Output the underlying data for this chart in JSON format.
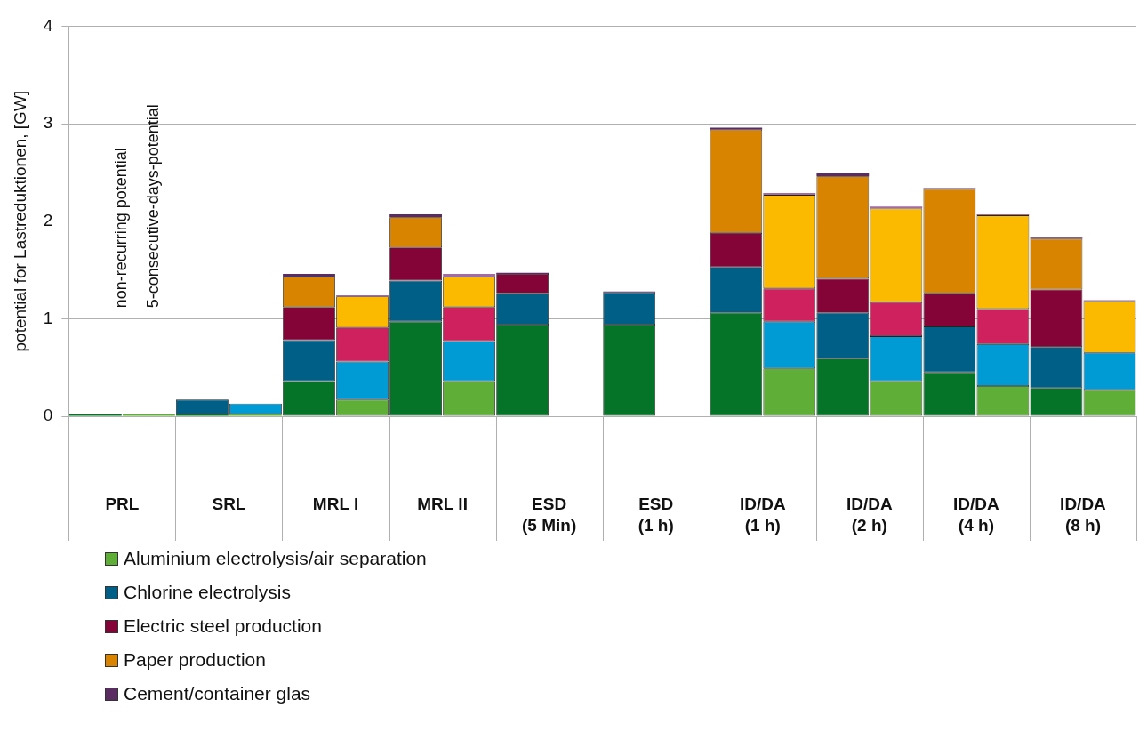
{
  "chart_data": {
    "type": "bar",
    "stacked": true,
    "ylabel": "potential for Lastreduktionen, [GW]",
    "annotations": [
      "non-recurring potential",
      "5-consecutive-days-potential"
    ],
    "categories": [
      "PRL",
      null,
      "SRL",
      null,
      "MRL I",
      null,
      "MRL II",
      null,
      "ESD (5 Min)",
      null,
      "ESD (1 h)",
      null,
      "ID/DA (1 h)",
      null,
      "ID/DA (2 h)",
      null,
      "ID/DA (4 h)",
      null,
      "ID/DA (8 h)",
      null
    ],
    "ylim": [
      0,
      4
    ],
    "yticks": [
      0,
      1,
      2,
      3,
      4
    ],
    "grid": "y",
    "legend": "bottom left",
    "series": [
      {
        "name": "Aluminium electrolysis/air separation",
        "color": "#5fae37",
        "colors": [
          "#057429",
          "#5fae37",
          "#057429",
          "#5fae37",
          "#057429",
          "#5fae37",
          "#057429",
          "#5fae37",
          "#057429",
          "#5fae37",
          "#057429",
          "#5fae37",
          "#057429",
          "#5fae37",
          "#057429",
          "#5fae37",
          "#057429",
          "#5fae37",
          "#057429",
          "#5fae37"
        ],
        "values": [
          0.02,
          0.02,
          0.02,
          0.02,
          0.36,
          0.17,
          0.97,
          0.36,
          0.94,
          null,
          0.94,
          null,
          1.06,
          0.49,
          0.59,
          0.36,
          0.45,
          0.31,
          0.29,
          0.27
        ]
      },
      {
        "name": "Chlorine electrolysis",
        "color": "#005f87",
        "colors": [
          "#005f87",
          "#009bd5",
          "#005f87",
          "#009bd5",
          "#005f87",
          "#009bd5",
          "#005f87",
          "#009bd5",
          "#005f87",
          "#009bd5",
          "#005f87",
          "#009bd5",
          "#005f87",
          "#009bd5",
          "#005f87",
          "#009bd5",
          "#005f87",
          "#009bd5",
          "#005f87",
          "#009bd5"
        ],
        "values": [
          null,
          null,
          0.15,
          0.11,
          0.42,
          0.39,
          0.42,
          0.41,
          0.32,
          null,
          0.33,
          null,
          0.47,
          0.48,
          0.47,
          0.46,
          0.47,
          0.43,
          0.42,
          0.38
        ]
      },
      {
        "name": "Electric steel production",
        "color": "#850437",
        "colors": [
          "#850437",
          "#cf215e",
          "#850437",
          "#cf215e",
          "#850437",
          "#cf215e",
          "#850437",
          "#cf215e",
          "#850437",
          "#cf215e",
          "#850437",
          "#cf215e",
          "#850437",
          "#cf215e",
          "#850437",
          "#cf215e",
          "#850437",
          "#cf215e",
          "#850437",
          "#cf215e"
        ],
        "values": [
          null,
          null,
          null,
          null,
          0.34,
          0.35,
          0.34,
          0.35,
          0.2,
          null,
          null,
          null,
          0.35,
          0.34,
          0.35,
          0.35,
          0.34,
          0.36,
          0.59,
          null
        ]
      },
      {
        "name": "Paper production",
        "color": "#d88400",
        "colors": [
          "#d88400",
          "#fbba00",
          "#d88400",
          "#fbba00",
          "#d88400",
          "#fbba00",
          "#d88400",
          "#fbba00",
          "#d88400",
          "#fbba00",
          "#d88400",
          "#fbba00",
          "#d88400",
          "#fbba00",
          "#d88400",
          "#fbba00",
          "#d88400",
          "#fbba00",
          "#d88400",
          "#fbba00"
        ],
        "values": [
          null,
          null,
          null,
          null,
          0.31,
          0.32,
          0.31,
          0.31,
          null,
          null,
          null,
          null,
          1.06,
          0.96,
          1.05,
          0.96,
          1.07,
          0.96,
          0.52,
          0.53
        ]
      },
      {
        "name": "Cement/container glas",
        "color": "#5b2c62",
        "colors": [
          "#5b2c62",
          "#a56aa0",
          "#5b2c62",
          "#a56aa0",
          "#5b2c62",
          "#a56aa0",
          "#5b2c62",
          "#a56aa0",
          "#5b2c62",
          "#a56aa0",
          "#5b2c62",
          "#a56aa0",
          "#5b2c62",
          "#a56aa0",
          "#5b2c62",
          "#a56aa0",
          "#5b2c62",
          "#a56aa0",
          "#5b2c62",
          "#a56aa0"
        ],
        "values": [
          null,
          null,
          null,
          null,
          0.03,
          0.01,
          0.03,
          0.03,
          0.01,
          null,
          0.01,
          null,
          0.02,
          0.02,
          0.03,
          0.02,
          0.01,
          0.01,
          0.01,
          0.01
        ]
      }
    ]
  }
}
